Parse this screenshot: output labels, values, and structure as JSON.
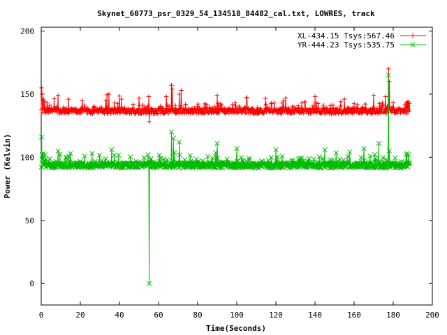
{
  "chart_data": {
    "type": "line",
    "title": "Skynet_60773_psr_0329_54_134518_84482_cal.txt, LOWRES, track",
    "xlabel": "Time(Seconds)",
    "ylabel": "Power (Kelvin)",
    "xlim": [
      0,
      200
    ],
    "ylim": [
      -17,
      203
    ],
    "xticks": [
      "0",
      "20",
      "40",
      "60",
      "80",
      "100",
      "120",
      "140",
      "160",
      "180",
      "200"
    ],
    "yticks": [
      "0",
      "50",
      "100",
      "150",
      "200"
    ],
    "grid": false,
    "legend_position": "top-right",
    "series": [
      {
        "name": "XL-434.15 Tsys:567.46",
        "color": "#ff0000",
        "marker": "plus",
        "baseline": 136,
        "noise": 2.2,
        "x_range": [
          0,
          188.4
        ],
        "x_step": 0.2,
        "spikes": [
          {
            "x": 0.2,
            "y": 155
          },
          {
            "x": 0.4,
            "y": 150
          },
          {
            "x": 0.9,
            "y": 145
          },
          {
            "x": 1.2,
            "y": 146
          },
          {
            "x": 1.8,
            "y": 144
          },
          {
            "x": 3.0,
            "y": 143
          },
          {
            "x": 8.5,
            "y": 149
          },
          {
            "x": 14.0,
            "y": 146
          },
          {
            "x": 21.0,
            "y": 145
          },
          {
            "x": 34.5,
            "y": 150
          },
          {
            "x": 41.0,
            "y": 146
          },
          {
            "x": 55.0,
            "y": 148
          },
          {
            "x": 55.3,
            "y": 128
          },
          {
            "x": 64.0,
            "y": 148
          },
          {
            "x": 66.5,
            "y": 157
          },
          {
            "x": 67.0,
            "y": 154
          },
          {
            "x": 70.5,
            "y": 150
          },
          {
            "x": 71.5,
            "y": 153
          },
          {
            "x": 90.0,
            "y": 149
          },
          {
            "x": 105.0,
            "y": 147
          },
          {
            "x": 125.0,
            "y": 147
          },
          {
            "x": 140.0,
            "y": 148
          },
          {
            "x": 155.0,
            "y": 146
          },
          {
            "x": 170.0,
            "y": 149
          },
          {
            "x": 176.0,
            "y": 148
          },
          {
            "x": 177.5,
            "y": 170
          },
          {
            "x": 178.0,
            "y": 160
          },
          {
            "x": 186.5,
            "y": 143
          },
          {
            "x": 187.0,
            "y": 143
          },
          {
            "x": 187.8,
            "y": 144
          }
        ]
      },
      {
        "name": "YR-444.23 Tsys:535.75",
        "color": "#00bb00",
        "marker": "cross",
        "baseline": 93,
        "noise": 2.2,
        "x_range": [
          0,
          188.4
        ],
        "x_step": 0.2,
        "spikes": [
          {
            "x": 0.2,
            "y": 116
          },
          {
            "x": 0.5,
            "y": 102
          },
          {
            "x": 1.0,
            "y": 103
          },
          {
            "x": 2.0,
            "y": 102
          },
          {
            "x": 8.5,
            "y": 105
          },
          {
            "x": 15.0,
            "y": 103
          },
          {
            "x": 26.0,
            "y": 103
          },
          {
            "x": 36.0,
            "y": 106
          },
          {
            "x": 54.5,
            "y": 102
          },
          {
            "x": 55.3,
            "y": 0
          },
          {
            "x": 66.5,
            "y": 120
          },
          {
            "x": 67.5,
            "y": 115
          },
          {
            "x": 70.5,
            "y": 112
          },
          {
            "x": 90.0,
            "y": 111
          },
          {
            "x": 100.0,
            "y": 107
          },
          {
            "x": 120.0,
            "y": 106
          },
          {
            "x": 145.0,
            "y": 106
          },
          {
            "x": 165.0,
            "y": 107
          },
          {
            "x": 172.5,
            "y": 111
          },
          {
            "x": 177.5,
            "y": 165
          },
          {
            "x": 178.0,
            "y": 105
          },
          {
            "x": 186.5,
            "y": 102
          },
          {
            "x": 187.0,
            "y": 103
          },
          {
            "x": 187.8,
            "y": 102
          }
        ]
      }
    ]
  }
}
